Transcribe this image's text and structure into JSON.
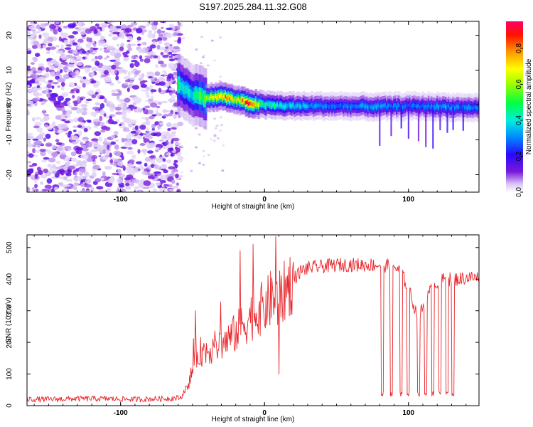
{
  "figure": {
    "title": "S197.2025.284.11.32.G08"
  },
  "chart_data": [
    {
      "type": "heatmap",
      "title": "S197.2025.284.11.32.G08",
      "xlabel": "Height of straight line (km)",
      "ylabel": "Frequency (Hz)",
      "xlim": [
        -165,
        149
      ],
      "ylim": [
        -25,
        24
      ],
      "xticks": [
        -100,
        0,
        100
      ],
      "xtick_labels": [
        "-100",
        "0",
        "100"
      ],
      "yticks": [
        -20,
        -10,
        0,
        10,
        20
      ],
      "ytick_labels": [
        "-20",
        "-10",
        "0",
        "10",
        "20"
      ],
      "grid": false,
      "description_of_values": "Spectrogram: broad scattered low-amplitude noise for heights below about -60 km; a narrow high-amplitude ridge near 0 Hz from about -60 km to 149 km, peaking (red) near -30 km to 0 km, with intermittent low-amplitude streaks below 0 Hz between 80 km and 130 km.",
      "ridge": {
        "x": [
          -60,
          -50,
          -40,
          -30,
          -20,
          -10,
          0,
          20,
          50,
          80,
          100,
          120,
          149
        ],
        "frequency": [
          6,
          3,
          2,
          2.5,
          1.5,
          0.5,
          0,
          -0.3,
          -0.3,
          -0.5,
          -0.3,
          -0.5,
          -0.8
        ],
        "amplitude": [
          0.5,
          0.45,
          0.6,
          0.9,
          0.7,
          0.95,
          0.5,
          0.4,
          0.3,
          0.35,
          0.3,
          0.35,
          0.3
        ]
      },
      "colorbar": {
        "label": "Normalized spectral amplitude",
        "range": [
          0,
          0.95
        ],
        "ticks": [
          0,
          0.2,
          0.4,
          0.6,
          0.8
        ],
        "tick_labels": [
          "0.0",
          "0.2",
          "0.4",
          "0.6",
          "0.8"
        ],
        "colors": [
          "#ffffff",
          "#d8c4f4",
          "#6600cc",
          "#2200ff",
          "#00aaff",
          "#00ffcc",
          "#00ff00",
          "#ccff00",
          "#ffff00",
          "#ff8800",
          "#ff0000",
          "#ff0066"
        ]
      }
    },
    {
      "type": "line",
      "title": "",
      "xlabel": "Height of straight line (km)",
      "ylabel": "SNR (10 * v/v)",
      "xlim": [
        -165,
        149
      ],
      "ylim": [
        0,
        540
      ],
      "xticks": [
        -100,
        0,
        100
      ],
      "xtick_labels": [
        "-100",
        "0",
        "100"
      ],
      "yticks": [
        0,
        100,
        200,
        300,
        400,
        500
      ],
      "ytick_labels": [
        "0",
        "100",
        "200",
        "300",
        "400",
        "500"
      ],
      "grid": false,
      "color": "#e8262b",
      "series": [
        {
          "name": "SNR",
          "x": [
            -165,
            -150,
            -130,
            -110,
            -90,
            -70,
            -58,
            -52,
            -48,
            -45,
            -40,
            -35,
            -30,
            -25,
            -20,
            -15,
            -10,
            -5,
            0,
            5,
            10,
            15,
            20,
            25,
            30,
            40,
            50,
            60,
            70,
            80,
            90,
            95,
            100,
            105,
            108,
            112,
            115,
            120,
            125,
            130,
            135,
            140,
            149
          ],
          "values": [
            20,
            20,
            22,
            22,
            20,
            22,
            25,
            80,
            150,
            170,
            175,
            185,
            195,
            210,
            230,
            255,
            280,
            300,
            310,
            340,
            330,
            370,
            400,
            425,
            435,
            440,
            445,
            445,
            445,
            445,
            440,
            420,
            370,
            300,
            290,
            330,
            360,
            390,
            400,
            400,
            400,
            405,
            405
          ]
        }
      ],
      "annotations": {
        "spikes": [
          {
            "x": -48,
            "value": 300
          },
          {
            "x": -17,
            "value": 490
          },
          {
            "x": -8,
            "value": 510
          },
          {
            "x": 8,
            "value": 535
          },
          {
            "x": 10,
            "value": 100
          }
        ],
        "dropouts_x": [
          82,
          88,
          95,
          100,
          107,
          112,
          117,
          122,
          127,
          131
        ],
        "dropout_value": 30
      }
    }
  ]
}
